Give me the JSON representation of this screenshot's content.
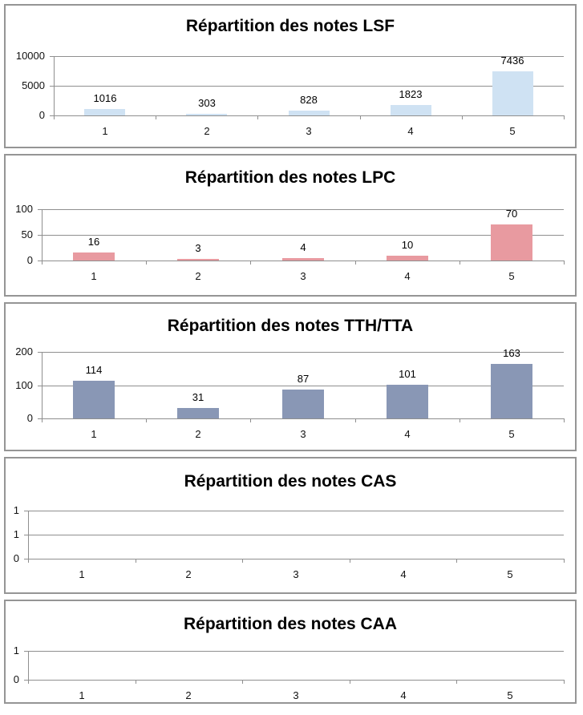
{
  "page": {
    "background_color": "#ffffff",
    "panel_border_color": "#959595",
    "gridline_color": "#8f8f8f"
  },
  "chart_data": [
    {
      "type": "bar",
      "title": "Répartition des notes LSF",
      "categories": [
        "1",
        "2",
        "3",
        "4",
        "5"
      ],
      "values": [
        1016,
        303,
        828,
        1823,
        7436
      ],
      "data_labels": [
        "1016",
        "303",
        "828",
        "1823",
        "7436"
      ],
      "ylim": [
        0,
        10000
      ],
      "ytick_labels": [
        "0",
        "5000",
        "10000"
      ],
      "bar_color": "#cfe2f3",
      "grid": true,
      "legend": "none"
    },
    {
      "type": "bar",
      "title": "Répartition des notes LPC",
      "categories": [
        "1",
        "2",
        "3",
        "4",
        "5"
      ],
      "values": [
        16,
        3,
        4,
        10,
        70
      ],
      "data_labels": [
        "16",
        "3",
        "4",
        "10",
        "70"
      ],
      "ylim": [
        0,
        100
      ],
      "ytick_labels": [
        "0",
        "50",
        "100"
      ],
      "bar_color": "#e89aa0",
      "grid": true,
      "legend": "none"
    },
    {
      "type": "bar",
      "title": "Répartition des notes TTH/TTA",
      "categories": [
        "1",
        "2",
        "3",
        "4",
        "5"
      ],
      "values": [
        114,
        31,
        87,
        101,
        163
      ],
      "data_labels": [
        "114",
        "31",
        "87",
        "101",
        "163"
      ],
      "ylim": [
        0,
        200
      ],
      "ytick_labels": [
        "0",
        "100",
        "200"
      ],
      "bar_color": "#8997b5",
      "grid": true,
      "legend": "none"
    },
    {
      "type": "bar",
      "title": "Répartition des notes CAS",
      "categories": [
        "1",
        "2",
        "3",
        "4",
        "5"
      ],
      "values": [],
      "data_labels": [],
      "ylim": [
        0,
        1
      ],
      "ytick_labels": [
        "0",
        "1",
        "1"
      ],
      "bar_color": "#cfe2f3",
      "grid": true,
      "legend": "none"
    },
    {
      "type": "bar",
      "title": "Répartition des notes CAA",
      "categories": [
        "1",
        "2",
        "3",
        "4",
        "5"
      ],
      "values": [],
      "data_labels": [],
      "ylim": [
        0,
        1
      ],
      "ytick_labels": [
        "0",
        "1"
      ],
      "bar_color": "#cfe2f3",
      "grid": true,
      "legend": "none"
    }
  ]
}
